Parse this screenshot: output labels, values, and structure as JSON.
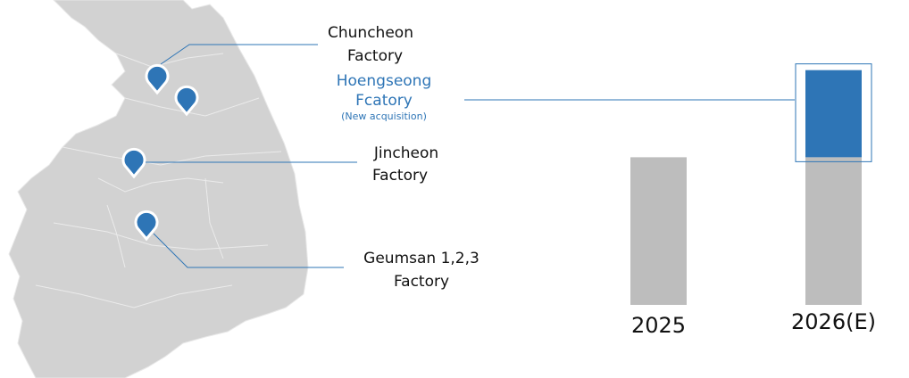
{
  "chart_data": {
    "type": "bar",
    "annotations": [
      {
        "lines": [
          "Chuncheon",
          "Factory"
        ]
      },
      {
        "lines": [
          "Hoengseong",
          "Fcatory"
        ],
        "note": "(New acquisition)"
      },
      {
        "lines": [
          "Jincheon",
          "Factory"
        ]
      },
      {
        "lines": [
          "Geumsan 1,2,3",
          "Factory"
        ]
      }
    ],
    "categories": [
      "2025",
      "2026(E)"
    ],
    "series": [
      {
        "color": "#bdbdbd",
        "values": [
          100,
          100
        ]
      },
      {
        "color": "#2e75b6",
        "values": [
          null,
          59
        ]
      }
    ],
    "ylim": [
      0,
      160
    ]
  }
}
